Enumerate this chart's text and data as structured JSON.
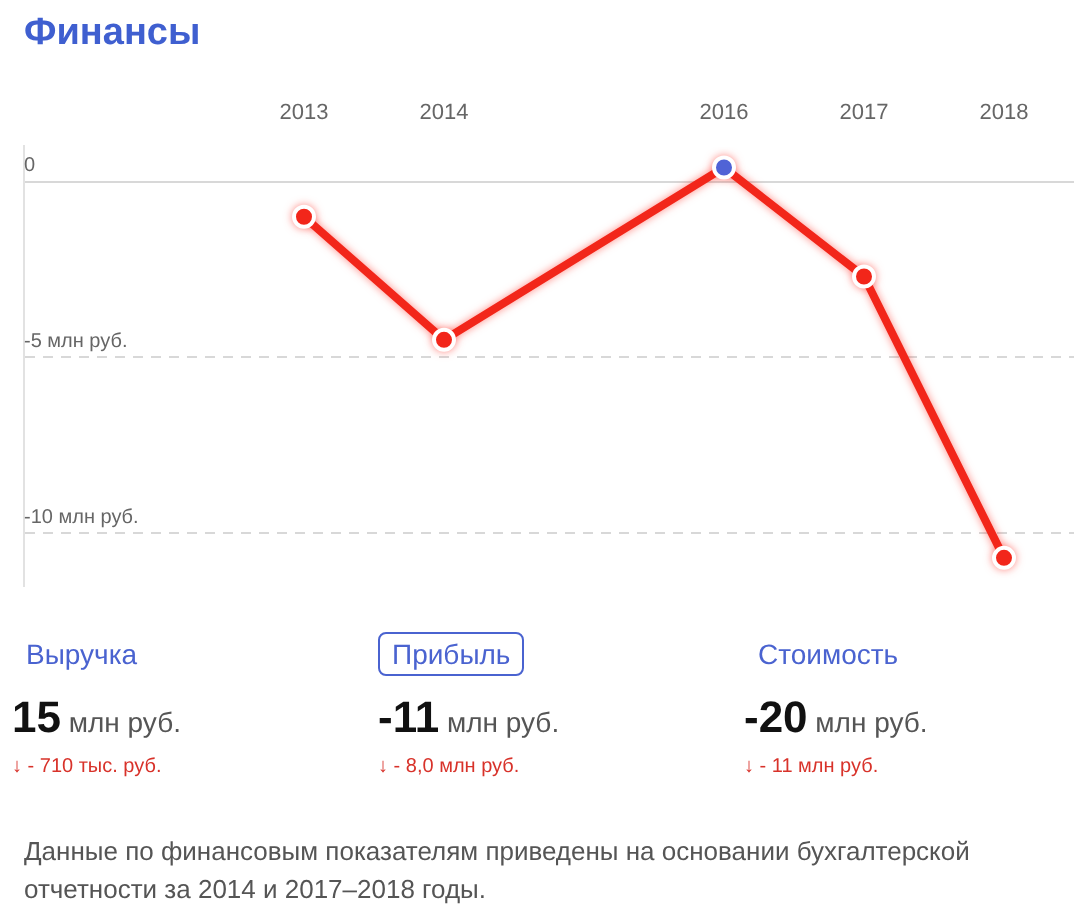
{
  "chart_data": [
    {
      "type": "line",
      "title": "Финансы",
      "x": [
        2013,
        2014,
        2016,
        2017,
        2018
      ],
      "series": [
        {
          "color": "#f2261a",
          "colors": [
            "#f2261a",
            "#f2261a",
            "#5063d6",
            "#f2261a",
            "#f2261a"
          ],
          "values": [
            -1.0,
            -4.5,
            0.4,
            -2.7,
            -10.7
          ]
        }
      ],
      "xlim": [
        2011,
        2018.5
      ],
      "xticks": [
        2013,
        2014,
        2016,
        2017,
        2018
      ],
      "ylim": [
        -11.5,
        1
      ],
      "yticks": [
        {
          "value": 0,
          "label": "0"
        },
        {
          "value": -5,
          "label": "-5 млн руб."
        },
        {
          "value": -10,
          "label": "-10 млн руб."
        }
      ],
      "grid": "y",
      "marker": "circle",
      "line_style": "solid"
    },
    {
      "type": "other",
      "categories": [
        "Выручка",
        "Прибыль",
        "Стоимость"
      ],
      "value_labels": [
        "15 млн руб.",
        "-11 млн руб.",
        "-20 млн руб."
      ],
      "annotations": [
        "↓ - 710 тыс. руб.",
        "↓ - 8,0 млн руб.",
        "↓ - 11 млн руб.",
        "Данные по финансовым показателям приведены на основании бухгалтерской отчетности за 2014 и 2017–2018 годы."
      ]
    }
  ]
}
